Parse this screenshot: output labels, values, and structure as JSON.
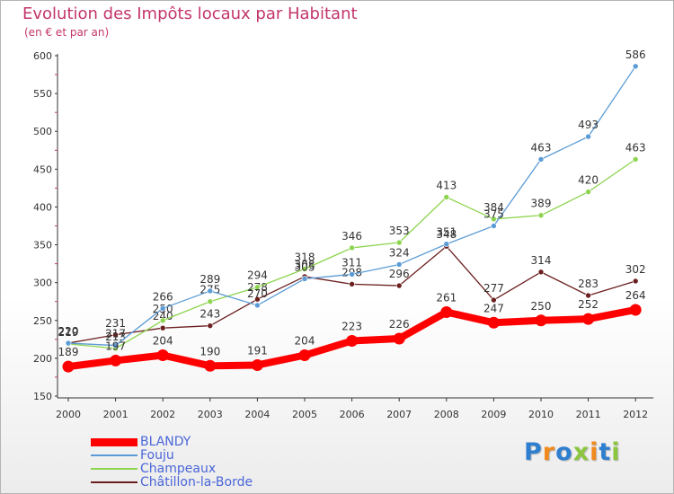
{
  "header": {
    "title": "Evolution des Impôts locaux par Habitant",
    "subtitle": "(en € et par an)"
  },
  "chart_data": {
    "type": "line",
    "title": "Evolution des Impôts locaux par Habitant",
    "subtitle": "(en € et par an)",
    "xlabel": "",
    "ylabel": "",
    "x": [
      "2000",
      "2001",
      "2002",
      "2003",
      "2004",
      "2005",
      "2006",
      "2007",
      "2008",
      "2009",
      "2010",
      "2011",
      "2012"
    ],
    "ylim": [
      150,
      600
    ],
    "yticks": [
      150,
      200,
      250,
      300,
      350,
      400,
      450,
      500,
      550,
      600
    ],
    "grid": false,
    "legend_position": "bottom-left",
    "series": [
      {
        "name": "BLANDY",
        "color": "#ff0000",
        "values": [
          189,
          197,
          204,
          190,
          191,
          204,
          223,
          226,
          261,
          247,
          250,
          252,
          264
        ]
      },
      {
        "name": "Fouju",
        "color": "#5b9bd5",
        "values": [
          220,
          217,
          266,
          289,
          270,
          305,
          311,
          324,
          351,
          375,
          463,
          493,
          586
        ]
      },
      {
        "name": "Champeaux",
        "color": "#8dd44f",
        "values": [
          219,
          213,
          250,
          275,
          294,
          318,
          346,
          353,
          413,
          384,
          389,
          420,
          463
        ]
      },
      {
        "name": "Châtillon-la-Borde",
        "color": "#6b1f1f",
        "values": [
          220,
          231,
          240,
          243,
          278,
          308,
          298,
          296,
          348,
          277,
          314,
          283,
          302
        ]
      }
    ]
  },
  "brand": {
    "letters": [
      {
        "char": "P",
        "color": "#2f7fd1"
      },
      {
        "char": "r",
        "color": "#f08a1e"
      },
      {
        "char": "o",
        "color": "#2f7fd1"
      },
      {
        "char": "x",
        "color": "#8cc63f"
      },
      {
        "char": "i",
        "color": "#f08a1e"
      },
      {
        "char": "t",
        "color": "#2f7fd1"
      },
      {
        "char": "i",
        "color": "#8cc63f"
      }
    ]
  }
}
